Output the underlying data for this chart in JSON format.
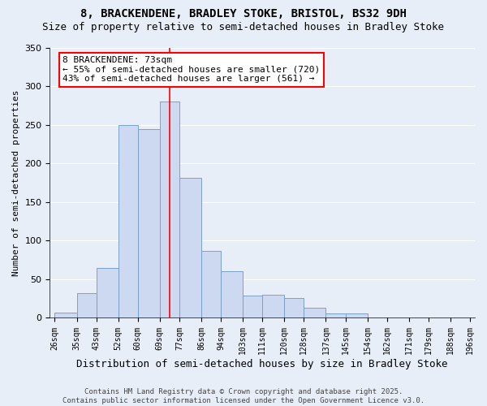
{
  "title_line1": "8, BRACKENDENE, BRADLEY STOKE, BRISTOL, BS32 9DH",
  "title_line2": "Size of property relative to semi-detached houses in Bradley Stoke",
  "xlabel": "Distribution of semi-detached houses by size in Bradley Stoke",
  "ylabel": "Number of semi-detached properties",
  "bins": [
    26,
    35,
    43,
    52,
    60,
    69,
    77,
    86,
    94,
    103,
    111,
    120,
    128,
    137,
    145,
    154,
    162,
    171,
    179,
    188,
    196
  ],
  "counts": [
    7,
    32,
    65,
    250,
    245,
    280,
    182,
    87,
    60,
    29,
    30,
    26,
    13,
    6,
    6,
    1,
    0,
    1,
    0,
    0
  ],
  "bar_color": "#ccd9f0",
  "bar_edge_color": "#7aa0cc",
  "annotation_line1": "8 BRACKENDENE: 73sqm",
  "annotation_line2": "← 55% of semi-detached houses are smaller (720)",
  "annotation_line3": "43% of semi-detached houses are larger (561) →",
  "vline_x": 73,
  "vline_color": "red",
  "tick_labels": [
    "26sqm",
    "35sqm",
    "43sqm",
    "52sqm",
    "60sqm",
    "69sqm",
    "77sqm",
    "86sqm",
    "94sqm",
    "103sqm",
    "111sqm",
    "120sqm",
    "128sqm",
    "137sqm",
    "145sqm",
    "154sqm",
    "162sqm",
    "171sqm",
    "179sqm",
    "188sqm",
    "196sqm"
  ],
  "ylim": [
    0,
    350
  ],
  "yticks": [
    0,
    50,
    100,
    150,
    200,
    250,
    300,
    350
  ],
  "footer_line1": "Contains HM Land Registry data © Crown copyright and database right 2025.",
  "footer_line2": "Contains public sector information licensed under the Open Government Licence v3.0.",
  "background_color": "#e8eef8",
  "grid_color": "#ffffff",
  "title_fontsize": 10,
  "subtitle_fontsize": 9,
  "ylabel_fontsize": 8,
  "xlabel_fontsize": 9,
  "tick_fontsize": 7,
  "ytick_fontsize": 8,
  "footer_fontsize": 6.5,
  "annot_fontsize": 8
}
